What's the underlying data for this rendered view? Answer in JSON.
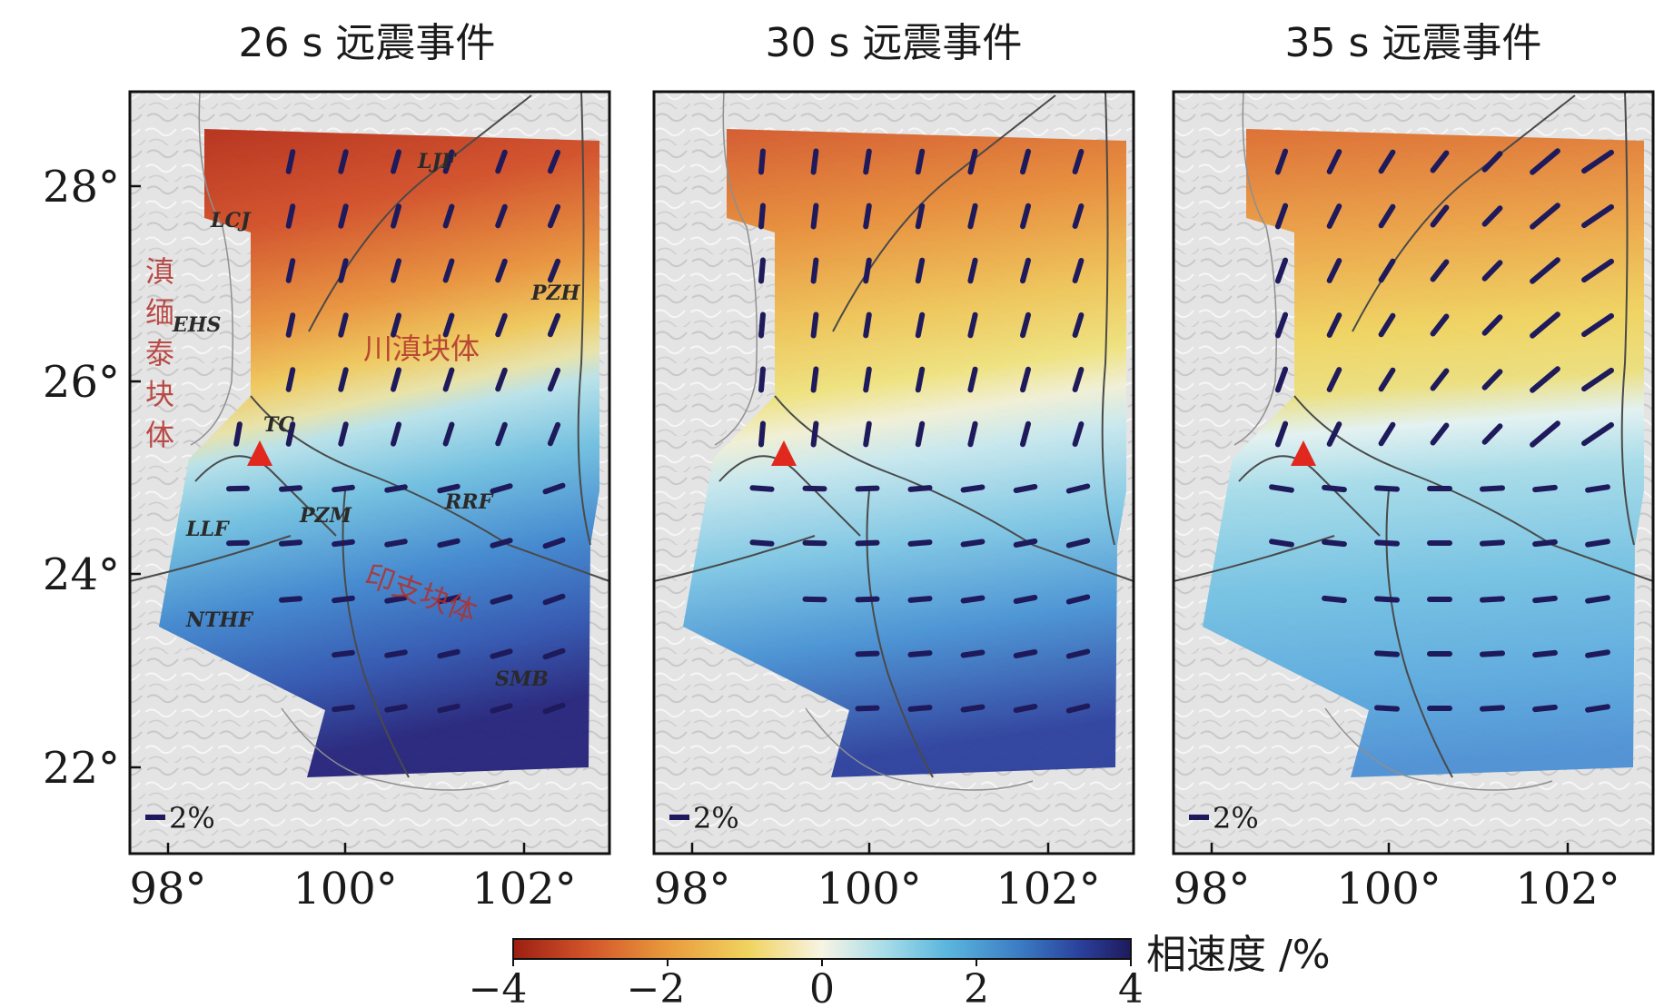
{
  "panels": [
    {
      "title": "26 s 远震事件"
    },
    {
      "title": "30 s 远震事件"
    },
    {
      "title": "35 s 远震事件"
    }
  ],
  "y_ticks": [
    "28°",
    "26°",
    "24°",
    "22°"
  ],
  "x_ticks": [
    "98°",
    "100°",
    "102°"
  ],
  "scale_label": "2%",
  "map_labels": {
    "block_ynmt": "滇缅泰块体",
    "block_cd": "川滇块体",
    "block_yz": "印支块体",
    "faults": [
      "LCJ",
      "LJF",
      "PZH",
      "EHS",
      "TC",
      "RRF",
      "LLF",
      "PZM",
      "NTHF",
      "SMB"
    ]
  },
  "colorbar": {
    "label": "相速度 /%",
    "ticks": [
      "−4",
      "−2",
      "0",
      "2",
      "4"
    ],
    "range": [
      -4,
      4
    ],
    "colors": [
      "#9c1f12",
      "#d2542a",
      "#e99a3c",
      "#f0d35e",
      "#f7f4e4",
      "#a9dde8",
      "#5bb7de",
      "#3b7cc4",
      "#2a3f9a",
      "#1e1a5c"
    ]
  },
  "station_marker": "red triangle",
  "anomaly_pattern": [
    {
      "region": "north (26°–28.5°N)",
      "panel_26s": "low velocity (−2 to −4%)",
      "panel_30s": "low velocity (−1 to −3%)",
      "panel_35s": "low velocity (−1 to −3%)"
    },
    {
      "region": "south (22°–25.5°N)",
      "panel_26s": "high velocity (+2 to +4%)",
      "panel_30s": "high velocity (+1 to +3%)",
      "panel_35s": "high velocity (+1 to +2%)"
    }
  ]
}
